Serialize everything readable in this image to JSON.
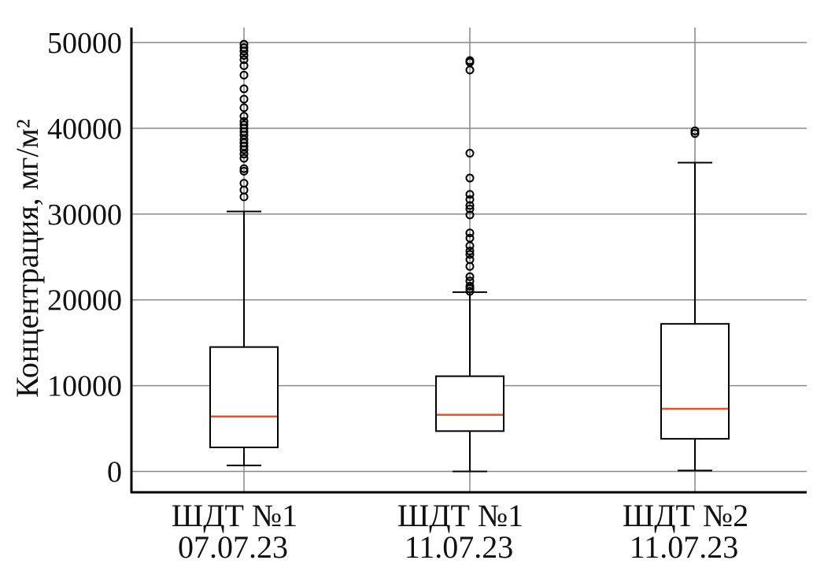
{
  "chart_data": {
    "type": "boxplot",
    "ylabel": "Концентрация, мг/м²",
    "ylim": [
      -2500,
      53000
    ],
    "yticks": [
      0,
      10000,
      20000,
      30000,
      40000,
      50000
    ],
    "ytick_labels": [
      "0",
      "10000",
      "20000",
      "30000",
      "40000",
      "50000"
    ],
    "grid": true,
    "colors": {
      "median": "#e8502a",
      "box": "#000000",
      "grid": "#888888"
    },
    "categories": [
      {
        "line1": "ШДТ №1",
        "line2": "07.07.23"
      },
      {
        "line1": "ШДТ №1",
        "line2": "11.07.23"
      },
      {
        "line1": "ШДТ №2",
        "line2": "11.07.23"
      }
    ],
    "boxes": [
      {
        "whisker_low": 700,
        "q1": 2800,
        "median": 6400,
        "q3": 14500,
        "whisker_high": 30300,
        "outliers": [
          32000,
          32800,
          33600,
          35000,
          35300,
          36500,
          37000,
          37500,
          37900,
          38300,
          38700,
          39200,
          39600,
          40000,
          40400,
          40800,
          41400,
          42400,
          43400,
          44600,
          46200,
          47300,
          48000,
          48500,
          49000,
          49400,
          49800
        ]
      },
      {
        "whisker_low": 0,
        "q1": 4700,
        "median": 6600,
        "q3": 11100,
        "whisker_high": 20900,
        "outliers": [
          21000,
          21300,
          21600,
          22200,
          22700,
          23900,
          24700,
          25300,
          25700,
          26300,
          27200,
          27800,
          29900,
          30600,
          31000,
          31700,
          32300,
          34200,
          37100,
          46800,
          47700,
          47900
        ]
      },
      {
        "whisker_low": 100,
        "q1": 3800,
        "median": 7300,
        "q3": 17200,
        "whisker_high": 36000,
        "outliers": [
          39400,
          39700
        ]
      }
    ]
  }
}
